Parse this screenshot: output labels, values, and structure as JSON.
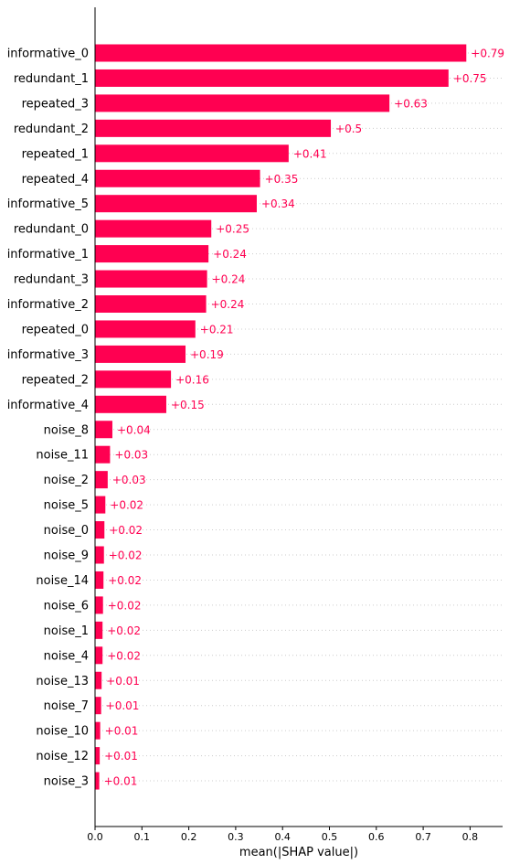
{
  "chart_data": {
    "type": "bar",
    "orientation": "horizontal",
    "categories": [
      "informative_0",
      "redundant_1",
      "repeated_3",
      "redundant_2",
      "repeated_1",
      "repeated_4",
      "informative_5",
      "redundant_0",
      "informative_1",
      "redundant_3",
      "informative_2",
      "repeated_0",
      "informative_3",
      "repeated_2",
      "informative_4",
      "noise_8",
      "noise_11",
      "noise_2",
      "noise_5",
      "noise_0",
      "noise_9",
      "noise_14",
      "noise_6",
      "noise_1",
      "noise_4",
      "noise_13",
      "noise_7",
      "noise_10",
      "noise_12",
      "noise_3"
    ],
    "values": [
      0.79,
      0.75,
      0.63,
      0.5,
      0.41,
      0.35,
      0.34,
      0.25,
      0.24,
      0.24,
      0.24,
      0.21,
      0.19,
      0.16,
      0.15,
      0.04,
      0.03,
      0.03,
      0.02,
      0.02,
      0.02,
      0.02,
      0.02,
      0.02,
      0.02,
      0.01,
      0.01,
      0.01,
      0.01,
      0.01
    ],
    "bar_lengths": [
      0.792,
      0.754,
      0.628,
      0.503,
      0.413,
      0.352,
      0.345,
      0.248,
      0.242,
      0.239,
      0.237,
      0.214,
      0.193,
      0.162,
      0.152,
      0.037,
      0.032,
      0.027,
      0.022,
      0.02,
      0.019,
      0.018,
      0.017,
      0.016,
      0.016,
      0.014,
      0.013,
      0.011,
      0.01,
      0.009
    ],
    "value_labels": [
      "+0.79",
      "+0.75",
      "+0.63",
      "+0.5",
      "+0.41",
      "+0.35",
      "+0.34",
      "+0.25",
      "+0.24",
      "+0.24",
      "+0.24",
      "+0.21",
      "+0.19",
      "+0.16",
      "+0.15",
      "+0.04",
      "+0.03",
      "+0.03",
      "+0.02",
      "+0.02",
      "+0.02",
      "+0.02",
      "+0.02",
      "+0.02",
      "+0.02",
      "+0.01",
      "+0.01",
      "+0.01",
      "+0.01",
      "+0.01"
    ],
    "xticks": [
      "0.0",
      "0.1",
      "0.2",
      "0.3",
      "0.4",
      "0.5",
      "0.6",
      "0.7",
      "0.8"
    ],
    "xlim": [
      0,
      0.87
    ],
    "xlabel": "mean(|SHAP value|)",
    "ylabel": "",
    "title": "",
    "grid": "dotted horizontal row guides",
    "bar_color": "#ff0051",
    "label_color": "#ff0051",
    "text_color": "#000000",
    "guide_color": "#cccccc"
  }
}
